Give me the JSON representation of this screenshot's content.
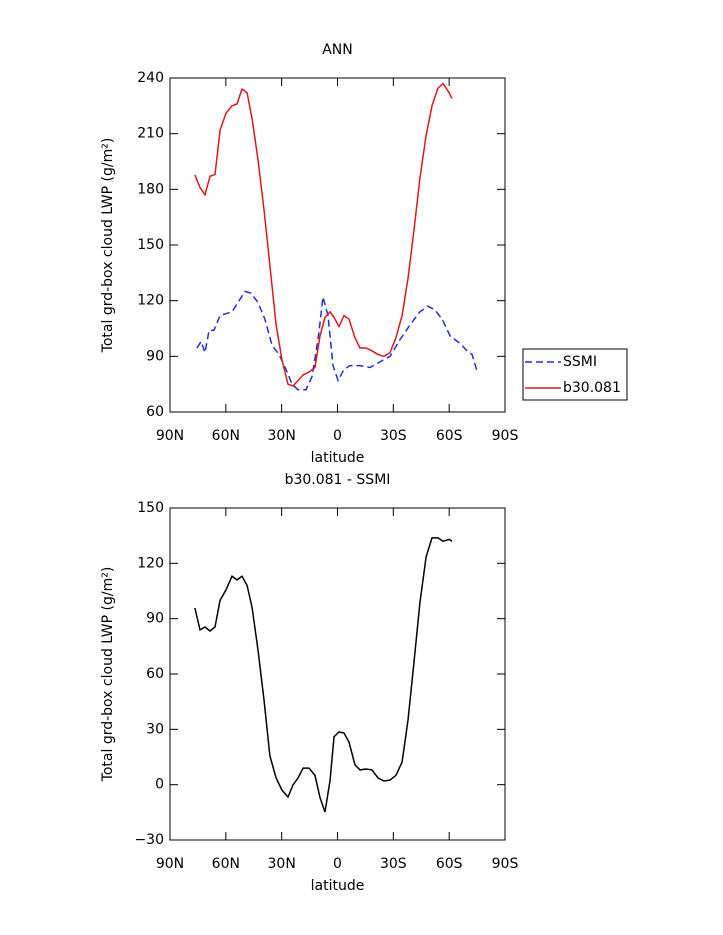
{
  "chart_data": [
    {
      "type": "line",
      "title": "ANN",
      "xlabel": "latitude",
      "ylabel": "Total grd-box cloud LWP (g/m²)",
      "xlim": [
        90,
        -90
      ],
      "xticks": [
        {
          "value": 90,
          "label": "90N"
        },
        {
          "value": 60,
          "label": "60N"
        },
        {
          "value": 30,
          "label": "30N"
        },
        0,
        {
          "value": -30,
          "label": "30S"
        },
        {
          "value": -60,
          "label": "60S"
        },
        {
          "value": -90,
          "label": "90S"
        }
      ],
      "ylim": [
        60,
        240
      ],
      "yticks": [
        60,
        90,
        120,
        150,
        180,
        210,
        240
      ],
      "legend": "right",
      "series": [
        {
          "name": "SSMI",
          "color": "#1f2fd8",
          "linestyle": "dashed",
          "x": [
            75.5,
            73.3,
            71.2,
            69,
            66.4,
            63.1,
            59.9,
            56.7,
            53.5,
            49.7,
            46.5,
            42.7,
            39,
            35.2,
            31.4,
            27.7,
            24.4,
            21.2,
            16.9,
            13.7,
            10.5,
            7.8,
            5.1,
            2.4,
            -0.3,
            -3.5,
            -6.7,
            -12.1,
            -17.5,
            -22.8,
            -28.2,
            -33.6,
            -39,
            -44.3,
            -48.6,
            -52.4,
            -56.2,
            -60.5,
            -65.8,
            -69.6,
            -72.3,
            -75
          ],
          "values": [
            94.5,
            98,
            92,
            104,
            104,
            112,
            113,
            114,
            119,
            125,
            124,
            119,
            110,
            96,
            91,
            83,
            75,
            72,
            72,
            79,
            99,
            122,
            112,
            85,
            77,
            83,
            85,
            85,
            84,
            87,
            90,
            99,
            107,
            114,
            117,
            115,
            110,
            101,
            97,
            93,
            91,
            82
          ]
        },
        {
          "name": "b30.081",
          "color": "#e01818",
          "linestyle": "solid",
          "x": [
            76.6,
            73.9,
            71.2,
            68.5,
            65.8,
            63.1,
            59.9,
            56.7,
            54,
            51.3,
            48.6,
            45.9,
            42.7,
            39.5,
            36.3,
            33,
            29.8,
            26.6,
            23.9,
            21.2,
            18.5,
            15.3,
            12.1,
            9.4,
            6.7,
            4,
            1.9,
            -0.8,
            -3.5,
            -6.2,
            -9.4,
            -12.1,
            -15.3,
            -18.5,
            -21.8,
            -25,
            -28.2,
            -31.4,
            -34.7,
            -37.9,
            -41.1,
            -44.3,
            -47.6,
            -50.8,
            -54,
            -56.7,
            -60,
            -61.5
          ],
          "values": [
            187.7,
            181,
            177,
            187,
            188,
            212,
            221,
            225,
            226,
            234,
            232,
            218,
            196,
            169,
            139,
            107,
            88,
            75,
            74,
            77,
            80,
            81.5,
            84,
            101,
            111,
            114,
            111,
            106,
            112,
            110,
            100,
            94.5,
            94.5,
            93,
            91,
            90,
            92,
            100,
            112,
            132,
            158,
            186,
            209,
            225,
            234.6,
            237,
            232,
            229
          ]
        }
      ]
    },
    {
      "type": "line",
      "title": "b30.081 - SSMI",
      "xlabel": "latitude",
      "ylabel": "Total grd-box cloud LWP (g/m²)",
      "xlim": [
        90,
        -90
      ],
      "xticks": [
        {
          "value": 90,
          "label": "90N"
        },
        {
          "value": 60,
          "label": "60N"
        },
        {
          "value": 30,
          "label": "30N"
        },
        0,
        {
          "value": -30,
          "label": "30S"
        },
        {
          "value": -60,
          "label": "60S"
        },
        {
          "value": -90,
          "label": "90S"
        }
      ],
      "ylim": [
        -30,
        150
      ],
      "yticks": [
        {
          "value": -30,
          "label": "−30"
        },
        0,
        30,
        60,
        90,
        120,
        150
      ],
      "series": [
        {
          "color": "#000000",
          "linestyle": "solid",
          "x": [
            76.6,
            73.9,
            71.2,
            68.5,
            65.8,
            63.1,
            59.9,
            56.7,
            54,
            51.3,
            48.6,
            45.9,
            42.7,
            39.5,
            36.3,
            33,
            29.8,
            26.6,
            23.9,
            21.2,
            18.5,
            15.3,
            12.1,
            9.4,
            6.7,
            4,
            1.9,
            -0.8,
            -3.5,
            -6.2,
            -9.4,
            -12.1,
            -15.3,
            -18.5,
            -21.8,
            -25,
            -28.2,
            -31.4,
            -34.7,
            -37.9,
            -41.1,
            -44.3,
            -47.6,
            -50.8,
            -54,
            -56.7,
            -60,
            -61.5
          ],
          "values": [
            95.8,
            83.9,
            85.5,
            83.3,
            85.5,
            100,
            105.6,
            113,
            111,
            113,
            108,
            96,
            73,
            46,
            15.6,
            3.6,
            -3,
            -6.7,
            -0.2,
            3.6,
            9,
            9,
            5,
            -7,
            -14.8,
            2.5,
            25.9,
            28.6,
            28,
            23,
            10.7,
            8,
            8.5,
            8,
            3.6,
            2,
            2.5,
            5,
            12.3,
            35,
            66.5,
            98.5,
            123.5,
            133.8,
            133.8,
            132,
            133,
            132
          ]
        }
      ]
    }
  ]
}
